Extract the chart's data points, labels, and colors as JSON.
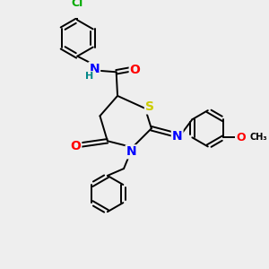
{
  "background_color": "#eeeeee",
  "bond_color": "#000000",
  "atom_colors": {
    "N": "#0000ff",
    "O": "#ff0000",
    "S": "#cccc00",
    "Cl": "#00aa00",
    "H": "#008888",
    "C": "#000000"
  },
  "bond_width": 1.4,
  "figsize": [
    3.0,
    3.0
  ],
  "dpi": 100,
  "xlim": [
    0,
    10
  ],
  "ylim": [
    0,
    10
  ]
}
